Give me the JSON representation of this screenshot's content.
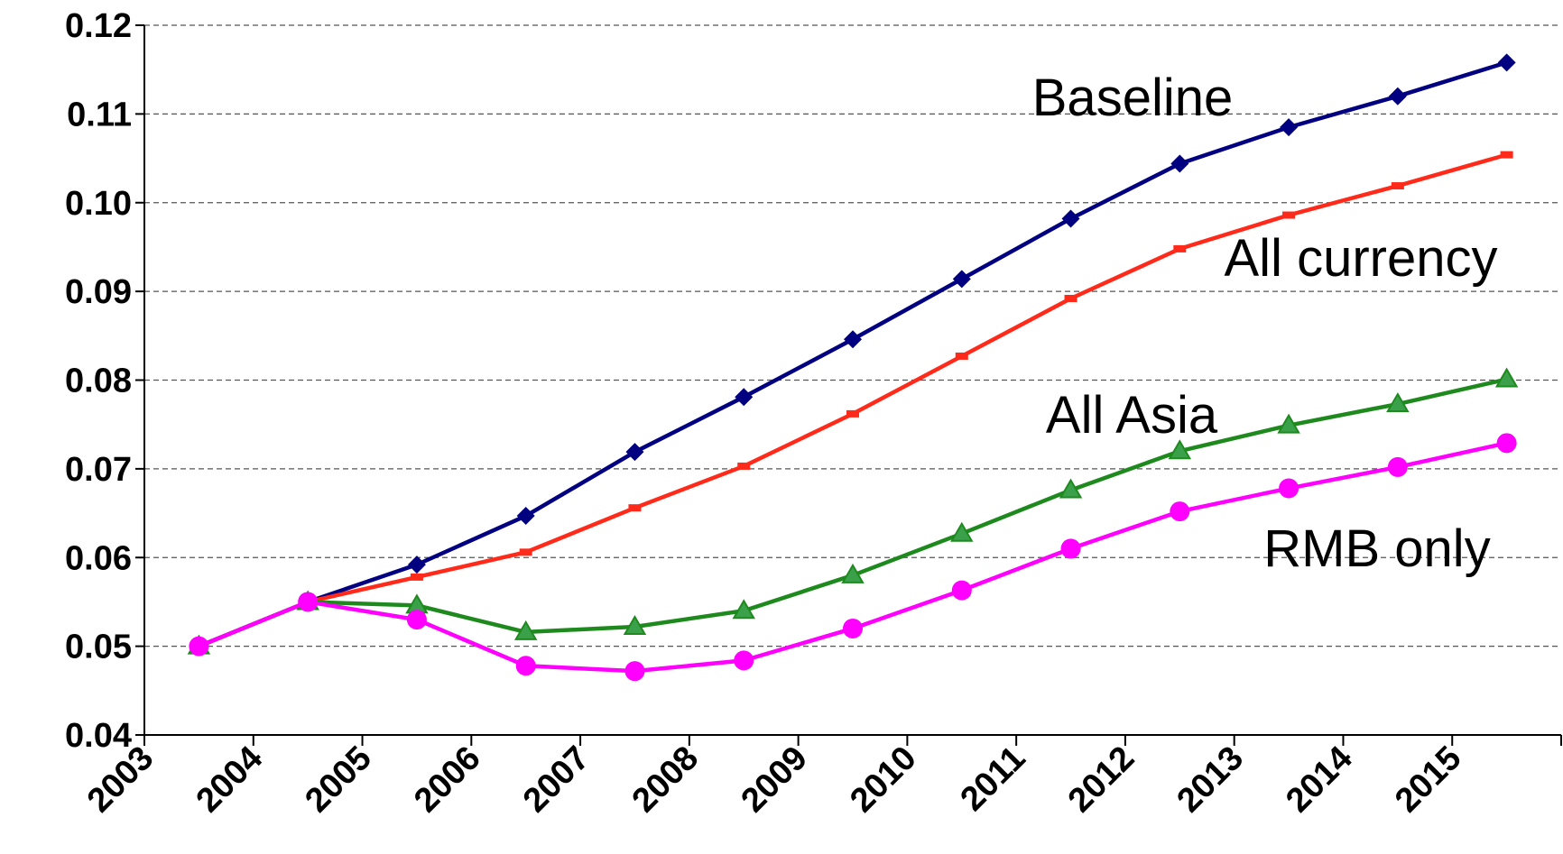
{
  "chart_data": {
    "type": "line",
    "x": [
      "2003",
      "2004",
      "2005",
      "2006",
      "2007",
      "2008",
      "2009",
      "2010",
      "2011",
      "2012",
      "2013",
      "2014",
      "2015"
    ],
    "ylim": [
      0.04,
      0.12
    ],
    "yticks": [
      "0.04",
      "0.05",
      "0.06",
      "0.07",
      "0.08",
      "0.09",
      "0.10",
      "0.11",
      "0.12"
    ],
    "grid": "horizontal dashed",
    "series": [
      {
        "name": "Baseline",
        "color": "#000080",
        "marker": "diamond",
        "values": [
          0.05,
          0.055,
          0.0592,
          0.0647,
          0.0719,
          0.0781,
          0.0846,
          0.0914,
          0.0982,
          0.1044,
          0.1085,
          0.112,
          0.1158
        ]
      },
      {
        "name": "All currency",
        "color": "#ff2a1a",
        "marker": "dash",
        "values": [
          0.05,
          0.055,
          0.0578,
          0.0606,
          0.0656,
          0.0703,
          0.0762,
          0.0827,
          0.0892,
          0.0948,
          0.0986,
          0.1019,
          0.1054
        ]
      },
      {
        "name": "All Asia",
        "color": "#1e8a1e",
        "marker": "triangle",
        "values": [
          0.05,
          0.055,
          0.0546,
          0.0516,
          0.0522,
          0.054,
          0.058,
          0.0627,
          0.0676,
          0.072,
          0.0749,
          0.0773,
          0.0801
        ]
      },
      {
        "name": "RMB only",
        "color": "#ff00ff",
        "marker": "circle",
        "values": [
          0.05,
          0.055,
          0.053,
          0.0478,
          0.0472,
          0.0484,
          0.052,
          0.0563,
          0.061,
          0.0652,
          0.0678,
          0.0702,
          0.0729
        ]
      }
    ]
  }
}
